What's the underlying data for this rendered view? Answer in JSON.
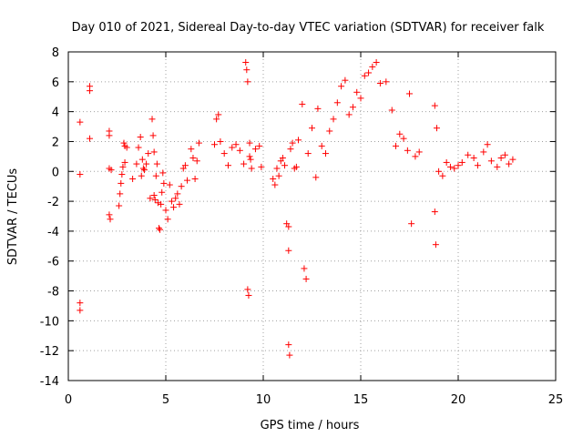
{
  "chart_data": {
    "type": "scatter",
    "title": "Day 010 of 2021, Sidereal Day-to-day VTEC variation (SDTVAR) for receiver falk",
    "xlabel": "GPS time / hours",
    "ylabel": "SDTVAR / TECUs",
    "xlim": [
      0,
      25
    ],
    "ylim": [
      -14,
      8
    ],
    "xticks": [
      0,
      5,
      10,
      15,
      20,
      25
    ],
    "yticks": [
      -14,
      -12,
      -10,
      -8,
      -6,
      -4,
      -2,
      0,
      2,
      4,
      6,
      8
    ],
    "grid": true,
    "marker": "+",
    "color": "#ff0000",
    "series": [
      {
        "name": "SDTVAR",
        "x": [
          0.6,
          0.6,
          0.6,
          0.6,
          1.1,
          1.1,
          1.1,
          2.1,
          2.1,
          2.1,
          2.1,
          2.15,
          2.2,
          2.6,
          2.65,
          2.7,
          2.75,
          2.8,
          2.85,
          2.9,
          2.9,
          3.0,
          3.3,
          3.5,
          3.6,
          3.7,
          3.75,
          3.8,
          3.85,
          3.9,
          4.0,
          4.1,
          4.2,
          4.3,
          4.35,
          4.4,
          4.4,
          4.45,
          4.5,
          4.55,
          4.6,
          4.65,
          4.7,
          4.75,
          4.8,
          4.85,
          4.9,
          5.0,
          5.1,
          5.2,
          5.3,
          5.4,
          5.5,
          5.6,
          5.7,
          5.8,
          5.9,
          6.0,
          6.1,
          6.3,
          6.4,
          6.5,
          6.6,
          6.7,
          7.5,
          7.6,
          7.7,
          7.8,
          8.0,
          8.2,
          8.4,
          8.6,
          8.8,
          9.0,
          9.1,
          9.15,
          9.2,
          9.2,
          9.25,
          9.3,
          9.3,
          9.35,
          9.4,
          9.6,
          9.8,
          9.9,
          10.5,
          10.6,
          10.7,
          10.8,
          10.9,
          11.0,
          11.1,
          11.2,
          11.3,
          11.3,
          11.3,
          11.35,
          11.4,
          11.5,
          11.6,
          11.7,
          11.8,
          12.0,
          12.1,
          12.2,
          12.3,
          12.5,
          12.7,
          12.8,
          13.0,
          13.2,
          13.4,
          13.6,
          13.8,
          14.0,
          14.2,
          14.4,
          14.6,
          14.8,
          15.0,
          15.2,
          15.4,
          15.6,
          15.8,
          16.0,
          16.3,
          16.6,
          16.8,
          17.0,
          17.2,
          17.4,
          17.5,
          17.6,
          17.8,
          18.0,
          18.8,
          18.8,
          18.85,
          18.9,
          19.0,
          19.2,
          19.4,
          19.6,
          19.8,
          20.0,
          20.2,
          20.5,
          20.8,
          21.0,
          21.3,
          21.5,
          21.7,
          22.0,
          22.2,
          22.4,
          22.6,
          22.8
        ],
        "values": [
          3.3,
          -0.2,
          -8.8,
          -9.3,
          5.7,
          5.4,
          2.2,
          2.7,
          2.4,
          0.2,
          -2.9,
          -3.2,
          0.1,
          -2.3,
          -1.5,
          -0.8,
          -0.2,
          0.3,
          1.9,
          1.7,
          0.6,
          1.6,
          -0.5,
          0.5,
          1.6,
          2.3,
          -0.3,
          0.8,
          0.2,
          0.1,
          0.5,
          1.2,
          -1.8,
          3.5,
          2.4,
          1.3,
          -1.6,
          -1.9,
          -0.3,
          0.5,
          -2.1,
          -3.8,
          -3.9,
          -2.2,
          -1.4,
          -0.1,
          -0.8,
          -2.6,
          -3.2,
          -0.9,
          -2.0,
          -2.4,
          -1.8,
          -1.5,
          -2.2,
          -1.0,
          0.2,
          0.4,
          -0.6,
          1.5,
          0.9,
          -0.5,
          0.7,
          1.9,
          1.8,
          3.5,
          3.8,
          2.0,
          1.2,
          0.4,
          1.6,
          1.8,
          1.4,
          0.5,
          7.3,
          6.8,
          6.0,
          -7.9,
          -8.3,
          1.9,
          1.0,
          0.8,
          0.2,
          1.5,
          1.7,
          0.3,
          -0.5,
          -0.9,
          0.2,
          -0.3,
          0.7,
          0.9,
          0.4,
          -3.5,
          -3.7,
          -5.3,
          -11.6,
          -12.3,
          1.5,
          1.9,
          0.2,
          0.3,
          2.1,
          4.5,
          -6.5,
          -7.2,
          1.2,
          2.9,
          -0.4,
          4.2,
          1.7,
          1.2,
          2.7,
          3.5,
          4.6,
          5.7,
          6.1,
          3.8,
          4.3,
          5.3,
          4.9,
          6.4,
          6.6,
          7.0,
          7.3,
          5.9,
          6.0,
          4.1,
          1.7,
          2.5,
          2.2,
          1.4,
          5.2,
          -3.5,
          1.0,
          1.3,
          4.4,
          -2.7,
          -4.9,
          2.9,
          0.0,
          -0.3,
          0.6,
          0.3,
          0.2,
          0.4,
          0.6,
          1.1,
          0.9,
          0.4,
          1.3,
          1.8,
          0.7,
          0.3,
          0.9,
          1.1,
          0.5,
          0.8
        ]
      }
    ]
  }
}
